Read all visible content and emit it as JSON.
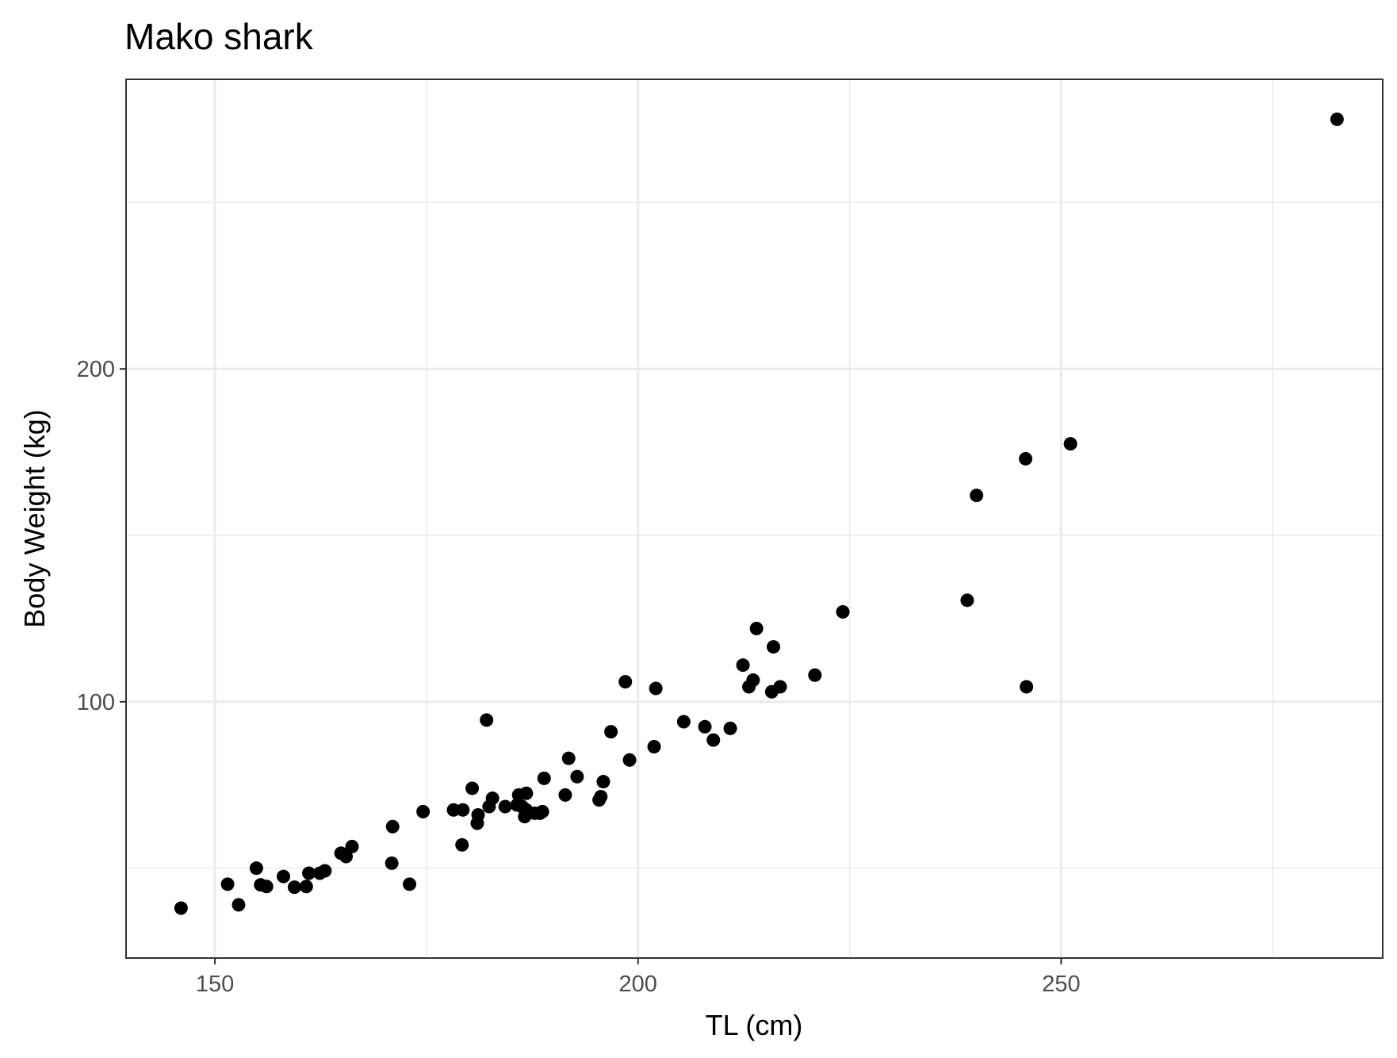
{
  "chart_data": {
    "type": "scatter",
    "title": "Mako shark",
    "xlabel": "TL (cm)",
    "ylabel": "Body Weight (kg)",
    "xlim": [
      139.5,
      288
    ],
    "ylim": [
      23,
      287
    ],
    "x_ticks": [
      150,
      200,
      250
    ],
    "y_ticks": [
      100,
      200
    ],
    "x_minor": [
      175,
      225,
      275
    ],
    "y_minor": [
      50,
      150,
      250
    ],
    "grid": true,
    "legend": "none",
    "point_color": "#000000",
    "series": [
      {
        "x": [
          146,
          151.5,
          152.8,
          154.9,
          155.4,
          156.1,
          158.1,
          159.4,
          160.8,
          161.1,
          162.4,
          163,
          164.9,
          165.5,
          166.2,
          170.9,
          171,
          173,
          174.6,
          178.2,
          179.2,
          179.3,
          180.4,
          181,
          181.1,
          182.1,
          182.4,
          182.8,
          184.3,
          185.7,
          185.9,
          186.3,
          186.6,
          186.8,
          186.8,
          187.8,
          188.4,
          188.7,
          188.9,
          191.4,
          191.8,
          192.8,
          195.4,
          195.6,
          195.9,
          196.8,
          198.5,
          199,
          201.9,
          202.1,
          205.4,
          207.9,
          208.9,
          210.9,
          212.4,
          213.1,
          213.6,
          214,
          215.8,
          216,
          216.8,
          220.9,
          224.2,
          238.9,
          240,
          245.8,
          245.9,
          251.1,
          282.6
        ],
        "y": [
          38,
          45.2,
          39,
          50,
          45,
          44.5,
          47.5,
          44.3,
          44.5,
          48.5,
          48.5,
          49.2,
          54.5,
          53.5,
          56.5,
          51.5,
          62.5,
          45.2,
          67,
          67.5,
          57,
          67.5,
          74,
          63.5,
          66,
          94.5,
          68.5,
          71,
          68.5,
          69,
          72,
          68.5,
          65.5,
          67.5,
          72.5,
          66.5,
          66.5,
          67,
          77,
          72,
          83,
          77.5,
          70.5,
          71.5,
          76,
          91,
          106,
          82.5,
          86.5,
          104,
          94,
          92.5,
          88.5,
          92,
          111,
          104.5,
          106.5,
          122,
          103,
          116.5,
          104.5,
          108,
          127,
          130.5,
          162,
          173,
          104.5,
          177.5,
          275
        ]
      }
    ]
  }
}
